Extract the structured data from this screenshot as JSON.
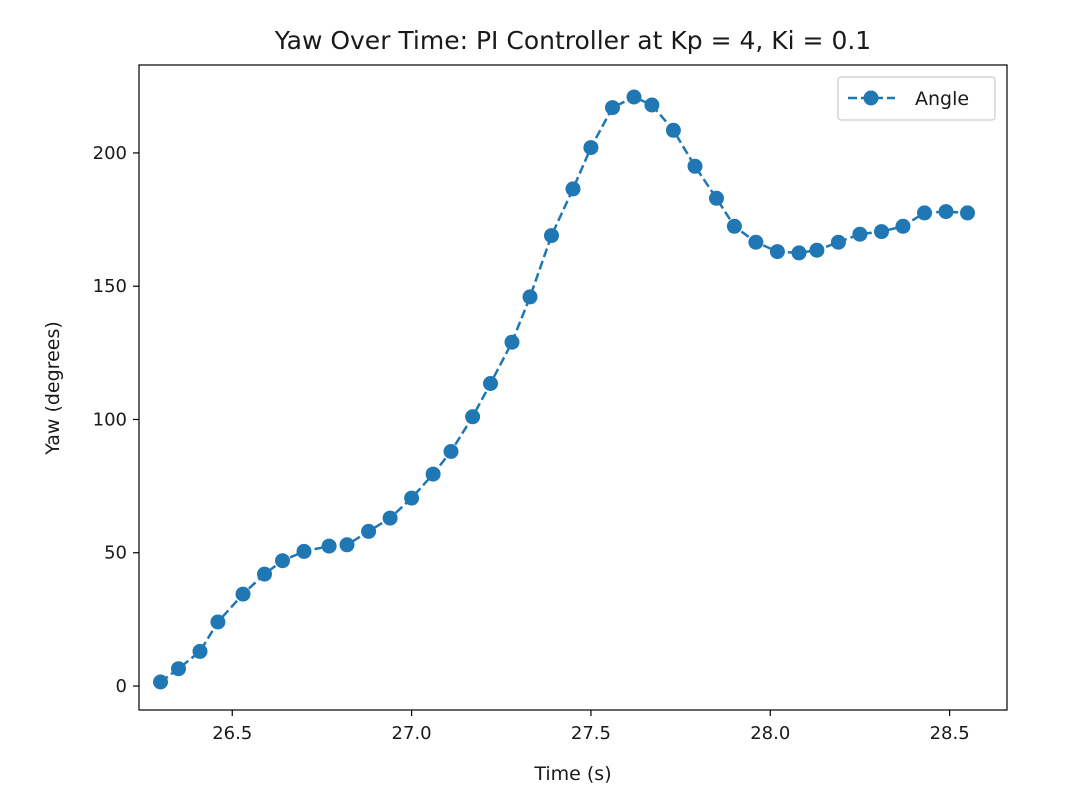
{
  "chart_data": {
    "type": "line",
    "title": "Yaw Over Time: PI Controller at Kp = 4, Ki = 0.1",
    "xlabel": "Time (s)",
    "ylabel": "Yaw (degrees)",
    "xlim": [
      26.24,
      28.66
    ],
    "ylim": [
      -9,
      233
    ],
    "xticks": [
      26.5,
      27.0,
      27.5,
      28.0,
      28.5
    ],
    "xtick_labels": [
      "26.5",
      "27.0",
      "27.5",
      "28.0",
      "28.5"
    ],
    "yticks": [
      0,
      50,
      100,
      150,
      200
    ],
    "ytick_labels": [
      "0",
      "50",
      "100",
      "150",
      "200"
    ],
    "grid": false,
    "legend_position": "top-right",
    "line_style": "dashed",
    "marker": "circle",
    "color": "#1f77b4",
    "series": [
      {
        "name": "Angle",
        "x": [
          26.3,
          26.35,
          26.41,
          26.46,
          26.53,
          26.59,
          26.64,
          26.7,
          26.77,
          26.82,
          26.88,
          26.94,
          27.0,
          27.06,
          27.11,
          27.17,
          27.22,
          27.28,
          27.33,
          27.39,
          27.45,
          27.5,
          27.56,
          27.62,
          27.67,
          27.73,
          27.79,
          27.85,
          27.9,
          27.96,
          28.02,
          28.08,
          28.13,
          28.19,
          28.25,
          28.31,
          28.37,
          28.43,
          28.49,
          28.55
        ],
        "values": [
          1.5,
          6.5,
          13,
          24,
          34.5,
          42,
          47,
          50.5,
          52.5,
          53,
          58,
          63,
          70.5,
          79.5,
          88,
          101,
          113.5,
          129,
          146,
          169,
          186.5,
          202,
          217,
          221,
          218,
          208.5,
          195,
          183,
          172.5,
          166.5,
          163,
          162.5,
          163.5,
          166.5,
          169.5,
          170.5,
          172.5,
          177.5,
          178,
          177.5
        ]
      }
    ]
  }
}
